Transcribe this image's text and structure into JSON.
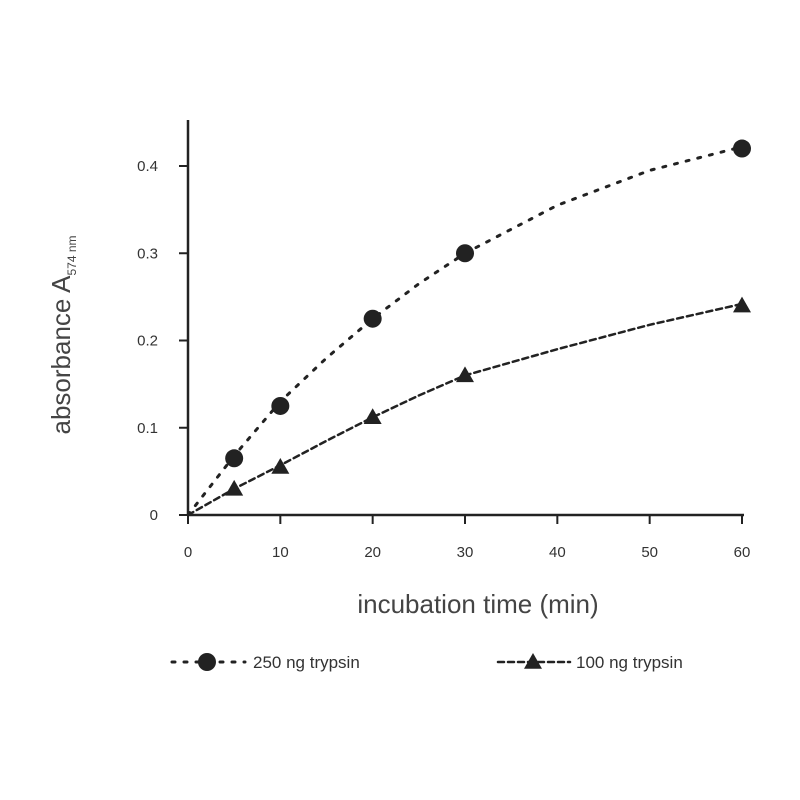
{
  "chart_data": {
    "type": "line",
    "title": "",
    "xlabel": "incubation time (min)",
    "ylabel_main": "absorbance A",
    "ylabel_sub": "574 nm",
    "xlim": [
      0,
      60
    ],
    "ylim": [
      0,
      0.45
    ],
    "x_ticks": [
      0,
      10,
      20,
      30,
      40,
      50,
      60
    ],
    "x_tick_labels": [
      "0",
      "10",
      "20",
      "30",
      "40",
      "50",
      "60"
    ],
    "y_ticks": [
      0,
      0.1,
      0.2,
      0.3,
      0.4
    ],
    "y_tick_labels": [
      "0",
      "0.1",
      "0.2",
      "0.3",
      "0.4"
    ],
    "grid": false,
    "legend_position": "bottom",
    "series": [
      {
        "name": "250 ng trypsin",
        "marker": "circle",
        "line_style": "dotted",
        "points": [
          [
            5,
            0.065
          ],
          [
            10,
            0.125
          ],
          [
            20,
            0.225
          ],
          [
            30,
            0.3
          ],
          [
            60,
            0.42
          ]
        ],
        "fit": [
          [
            0,
            0
          ],
          [
            5,
            0.068
          ],
          [
            10,
            0.13
          ],
          [
            15,
            0.18
          ],
          [
            20,
            0.225
          ],
          [
            25,
            0.265
          ],
          [
            30,
            0.3
          ],
          [
            40,
            0.355
          ],
          [
            50,
            0.395
          ],
          [
            60,
            0.422
          ]
        ]
      },
      {
        "name": "100 ng trypsin",
        "marker": "triangle",
        "line_style": "dashed",
        "points": [
          [
            5,
            0.03
          ],
          [
            10,
            0.055
          ],
          [
            20,
            0.112
          ],
          [
            30,
            0.16
          ],
          [
            60,
            0.24
          ]
        ],
        "fit": [
          [
            0,
            0
          ],
          [
            5,
            0.03
          ],
          [
            10,
            0.057
          ],
          [
            15,
            0.085
          ],
          [
            20,
            0.112
          ],
          [
            25,
            0.137
          ],
          [
            30,
            0.16
          ],
          [
            40,
            0.19
          ],
          [
            50,
            0.218
          ],
          [
            60,
            0.242
          ]
        ]
      }
    ]
  }
}
